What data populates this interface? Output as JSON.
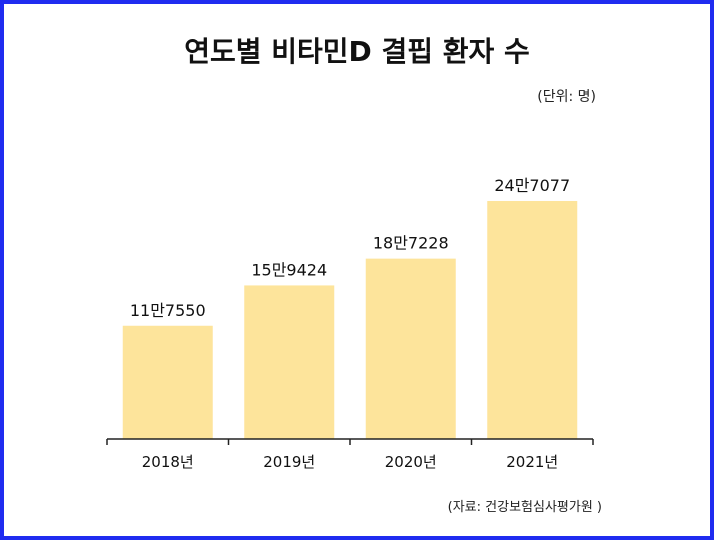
{
  "title": "연도별 비타민D 결핍 환자 수",
  "unit_note": "(단위: 명)",
  "source_note": "(자료: 건강보험심사평가원 )",
  "colors": {
    "bar": "#fde49b",
    "axis": "#222222",
    "border": "#1f2cf0"
  },
  "chart_data": {
    "type": "bar",
    "categories": [
      "2018년",
      "2019년",
      "2020년",
      "2021년"
    ],
    "values": [
      117550,
      159424,
      187228,
      247077
    ],
    "value_labels": [
      "11만7550",
      "15만9424",
      "18만7228",
      "24만7077"
    ],
    "ylim": [
      0,
      300000
    ],
    "xlabel": "",
    "ylabel": "",
    "grid": false,
    "legend": "none"
  }
}
